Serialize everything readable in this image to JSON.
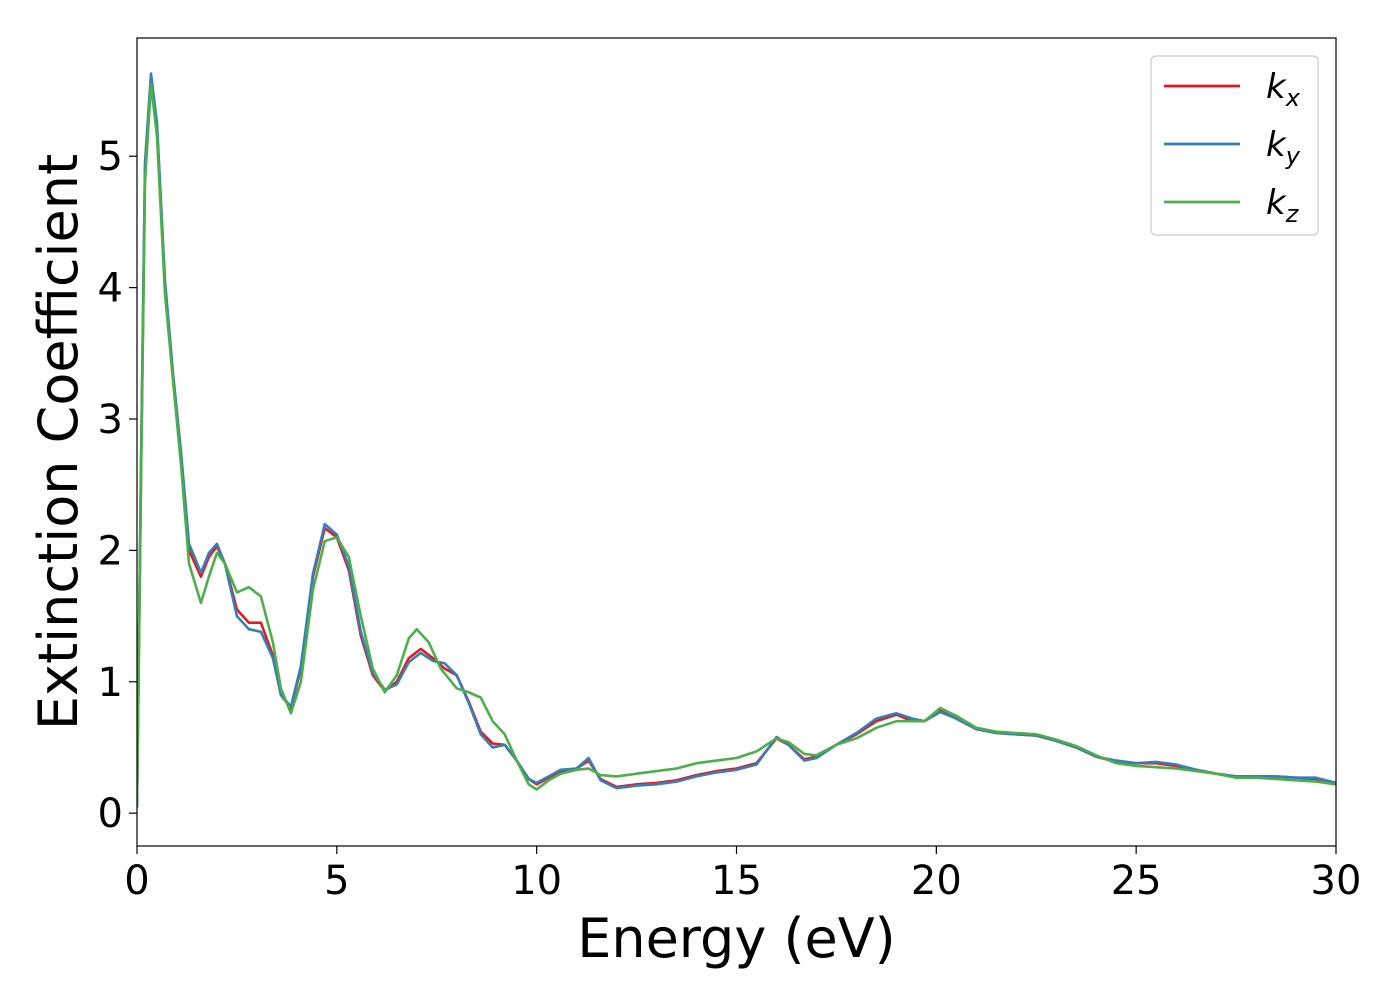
{
  "chart_data": {
    "type": "line",
    "title": "",
    "xlabel": "Energy (eV)",
    "ylabel": "Extinction Coefficient",
    "xlim": [
      0,
      30
    ],
    "ylim": [
      -0.25,
      5.9
    ],
    "xticks": [
      0,
      5,
      10,
      15,
      20,
      25,
      30
    ],
    "yticks": [
      0,
      1,
      2,
      3,
      4,
      5
    ],
    "grid": false,
    "legend_position": "top-right",
    "series": [
      {
        "name": "k",
        "subscript": "x",
        "color": "#e41a1c",
        "points": [
          [
            0,
            0.05
          ],
          [
            0.1,
            2.6
          ],
          [
            0.2,
            4.9
          ],
          [
            0.35,
            5.6
          ],
          [
            0.5,
            5.2
          ],
          [
            0.7,
            4.0
          ],
          [
            0.9,
            3.3
          ],
          [
            1.1,
            2.7
          ],
          [
            1.3,
            2.0
          ],
          [
            1.6,
            1.8
          ],
          [
            1.8,
            1.95
          ],
          [
            2.0,
            2.03
          ],
          [
            2.2,
            1.9
          ],
          [
            2.5,
            1.55
          ],
          [
            2.8,
            1.45
          ],
          [
            3.1,
            1.45
          ],
          [
            3.4,
            1.2
          ],
          [
            3.6,
            0.9
          ],
          [
            3.85,
            0.8
          ],
          [
            4.1,
            1.1
          ],
          [
            4.4,
            1.8
          ],
          [
            4.7,
            2.17
          ],
          [
            5.0,
            2.1
          ],
          [
            5.3,
            1.85
          ],
          [
            5.6,
            1.35
          ],
          [
            5.9,
            1.05
          ],
          [
            6.2,
            0.93
          ],
          [
            6.5,
            1.0
          ],
          [
            6.8,
            1.18
          ],
          [
            7.1,
            1.25
          ],
          [
            7.4,
            1.18
          ],
          [
            7.7,
            1.1
          ],
          [
            8.0,
            1.05
          ],
          [
            8.3,
            0.85
          ],
          [
            8.6,
            0.62
          ],
          [
            8.9,
            0.53
          ],
          [
            9.2,
            0.52
          ],
          [
            9.5,
            0.4
          ],
          [
            9.8,
            0.26
          ],
          [
            10.0,
            0.22
          ],
          [
            10.3,
            0.27
          ],
          [
            10.6,
            0.32
          ],
          [
            11.0,
            0.34
          ],
          [
            11.3,
            0.4
          ],
          [
            11.6,
            0.26
          ],
          [
            12.0,
            0.2
          ],
          [
            12.5,
            0.22
          ],
          [
            13.0,
            0.23
          ],
          [
            13.5,
            0.25
          ],
          [
            14.0,
            0.29
          ],
          [
            14.5,
            0.32
          ],
          [
            15.0,
            0.34
          ],
          [
            15.5,
            0.38
          ],
          [
            16.0,
            0.57
          ],
          [
            16.3,
            0.52
          ],
          [
            16.7,
            0.41
          ],
          [
            17.0,
            0.43
          ],
          [
            17.5,
            0.52
          ],
          [
            18.0,
            0.6
          ],
          [
            18.5,
            0.7
          ],
          [
            19.0,
            0.75
          ],
          [
            19.4,
            0.7
          ],
          [
            19.7,
            0.7
          ],
          [
            20.1,
            0.78
          ],
          [
            20.5,
            0.72
          ],
          [
            21.0,
            0.64
          ],
          [
            21.5,
            0.61
          ],
          [
            22.0,
            0.6
          ],
          [
            22.5,
            0.59
          ],
          [
            23.0,
            0.55
          ],
          [
            23.5,
            0.5
          ],
          [
            24.0,
            0.43
          ],
          [
            24.5,
            0.39
          ],
          [
            25.0,
            0.38
          ],
          [
            25.5,
            0.38
          ],
          [
            26.0,
            0.36
          ],
          [
            26.5,
            0.33
          ],
          [
            27.0,
            0.3
          ],
          [
            27.5,
            0.28
          ],
          [
            28.0,
            0.28
          ],
          [
            28.5,
            0.28
          ],
          [
            29.0,
            0.27
          ],
          [
            29.5,
            0.26
          ],
          [
            30.0,
            0.23
          ]
        ]
      },
      {
        "name": "k",
        "subscript": "y",
        "color": "#377eb8",
        "points": [
          [
            0,
            0.05
          ],
          [
            0.1,
            2.65
          ],
          [
            0.2,
            4.95
          ],
          [
            0.35,
            5.63
          ],
          [
            0.5,
            5.25
          ],
          [
            0.7,
            4.05
          ],
          [
            0.9,
            3.35
          ],
          [
            1.1,
            2.75
          ],
          [
            1.3,
            2.05
          ],
          [
            1.6,
            1.83
          ],
          [
            1.8,
            1.98
          ],
          [
            2.0,
            2.05
          ],
          [
            2.2,
            1.9
          ],
          [
            2.5,
            1.5
          ],
          [
            2.8,
            1.4
          ],
          [
            3.1,
            1.38
          ],
          [
            3.4,
            1.18
          ],
          [
            3.6,
            0.9
          ],
          [
            3.85,
            0.81
          ],
          [
            4.1,
            1.12
          ],
          [
            4.4,
            1.82
          ],
          [
            4.7,
            2.2
          ],
          [
            5.0,
            2.12
          ],
          [
            5.3,
            1.88
          ],
          [
            5.6,
            1.38
          ],
          [
            5.9,
            1.07
          ],
          [
            6.2,
            0.94
          ],
          [
            6.5,
            0.98
          ],
          [
            6.8,
            1.15
          ],
          [
            7.1,
            1.22
          ],
          [
            7.4,
            1.16
          ],
          [
            7.7,
            1.14
          ],
          [
            8.0,
            1.05
          ],
          [
            8.3,
            0.84
          ],
          [
            8.6,
            0.6
          ],
          [
            8.9,
            0.5
          ],
          [
            9.2,
            0.52
          ],
          [
            9.5,
            0.4
          ],
          [
            9.8,
            0.26
          ],
          [
            10.0,
            0.23
          ],
          [
            10.3,
            0.28
          ],
          [
            10.6,
            0.33
          ],
          [
            11.0,
            0.34
          ],
          [
            11.3,
            0.42
          ],
          [
            11.6,
            0.25
          ],
          [
            12.0,
            0.19
          ],
          [
            12.5,
            0.21
          ],
          [
            13.0,
            0.22
          ],
          [
            13.5,
            0.24
          ],
          [
            14.0,
            0.28
          ],
          [
            14.5,
            0.31
          ],
          [
            15.0,
            0.33
          ],
          [
            15.5,
            0.37
          ],
          [
            16.0,
            0.58
          ],
          [
            16.3,
            0.52
          ],
          [
            16.7,
            0.4
          ],
          [
            17.0,
            0.42
          ],
          [
            17.5,
            0.52
          ],
          [
            18.0,
            0.61
          ],
          [
            18.5,
            0.72
          ],
          [
            19.0,
            0.76
          ],
          [
            19.4,
            0.72
          ],
          [
            19.7,
            0.7
          ],
          [
            20.1,
            0.77
          ],
          [
            20.5,
            0.72
          ],
          [
            21.0,
            0.64
          ],
          [
            21.5,
            0.61
          ],
          [
            22.0,
            0.6
          ],
          [
            22.5,
            0.59
          ],
          [
            23.0,
            0.55
          ],
          [
            23.5,
            0.5
          ],
          [
            24.0,
            0.43
          ],
          [
            24.5,
            0.4
          ],
          [
            25.0,
            0.38
          ],
          [
            25.5,
            0.39
          ],
          [
            26.0,
            0.37
          ],
          [
            26.5,
            0.33
          ],
          [
            27.0,
            0.3
          ],
          [
            27.5,
            0.28
          ],
          [
            28.0,
            0.28
          ],
          [
            28.5,
            0.28
          ],
          [
            29.0,
            0.27
          ],
          [
            29.5,
            0.27
          ],
          [
            30.0,
            0.23
          ]
        ]
      },
      {
        "name": "k",
        "subscript": "z",
        "color": "#4daf4a",
        "points": [
          [
            0,
            0.05
          ],
          [
            0.1,
            2.5
          ],
          [
            0.2,
            4.8
          ],
          [
            0.35,
            5.55
          ],
          [
            0.5,
            5.15
          ],
          [
            0.7,
            3.95
          ],
          [
            0.9,
            3.3
          ],
          [
            1.1,
            2.65
          ],
          [
            1.3,
            1.9
          ],
          [
            1.6,
            1.6
          ],
          [
            1.8,
            1.8
          ],
          [
            2.0,
            1.98
          ],
          [
            2.2,
            1.9
          ],
          [
            2.5,
            1.68
          ],
          [
            2.8,
            1.72
          ],
          [
            3.1,
            1.65
          ],
          [
            3.4,
            1.3
          ],
          [
            3.6,
            0.95
          ],
          [
            3.85,
            0.76
          ],
          [
            4.1,
            1.0
          ],
          [
            4.4,
            1.7
          ],
          [
            4.7,
            2.07
          ],
          [
            5.0,
            2.1
          ],
          [
            5.3,
            1.95
          ],
          [
            5.6,
            1.5
          ],
          [
            5.9,
            1.1
          ],
          [
            6.2,
            0.92
          ],
          [
            6.5,
            1.05
          ],
          [
            6.8,
            1.33
          ],
          [
            7.0,
            1.4
          ],
          [
            7.3,
            1.3
          ],
          [
            7.6,
            1.1
          ],
          [
            8.0,
            0.95
          ],
          [
            8.3,
            0.92
          ],
          [
            8.6,
            0.88
          ],
          [
            8.9,
            0.7
          ],
          [
            9.2,
            0.6
          ],
          [
            9.5,
            0.4
          ],
          [
            9.8,
            0.22
          ],
          [
            10.0,
            0.18
          ],
          [
            10.3,
            0.25
          ],
          [
            10.6,
            0.3
          ],
          [
            11.0,
            0.33
          ],
          [
            11.3,
            0.34
          ],
          [
            11.6,
            0.29
          ],
          [
            12.0,
            0.28
          ],
          [
            12.5,
            0.3
          ],
          [
            13.0,
            0.32
          ],
          [
            13.5,
            0.34
          ],
          [
            14.0,
            0.38
          ],
          [
            14.5,
            0.4
          ],
          [
            15.0,
            0.42
          ],
          [
            15.5,
            0.47
          ],
          [
            16.0,
            0.57
          ],
          [
            16.3,
            0.54
          ],
          [
            16.7,
            0.45
          ],
          [
            17.0,
            0.44
          ],
          [
            17.5,
            0.52
          ],
          [
            18.0,
            0.57
          ],
          [
            18.5,
            0.65
          ],
          [
            19.0,
            0.7
          ],
          [
            19.4,
            0.7
          ],
          [
            19.7,
            0.7
          ],
          [
            20.1,
            0.8
          ],
          [
            20.5,
            0.74
          ],
          [
            21.0,
            0.65
          ],
          [
            21.5,
            0.62
          ],
          [
            22.0,
            0.61
          ],
          [
            22.5,
            0.6
          ],
          [
            23.0,
            0.56
          ],
          [
            23.5,
            0.51
          ],
          [
            24.0,
            0.44
          ],
          [
            24.5,
            0.38
          ],
          [
            25.0,
            0.36
          ],
          [
            25.5,
            0.35
          ],
          [
            26.0,
            0.34
          ],
          [
            26.5,
            0.32
          ],
          [
            27.0,
            0.3
          ],
          [
            27.5,
            0.27
          ],
          [
            28.0,
            0.27
          ],
          [
            28.5,
            0.26
          ],
          [
            29.0,
            0.25
          ],
          [
            29.5,
            0.24
          ],
          [
            30.0,
            0.22
          ]
        ]
      }
    ]
  }
}
